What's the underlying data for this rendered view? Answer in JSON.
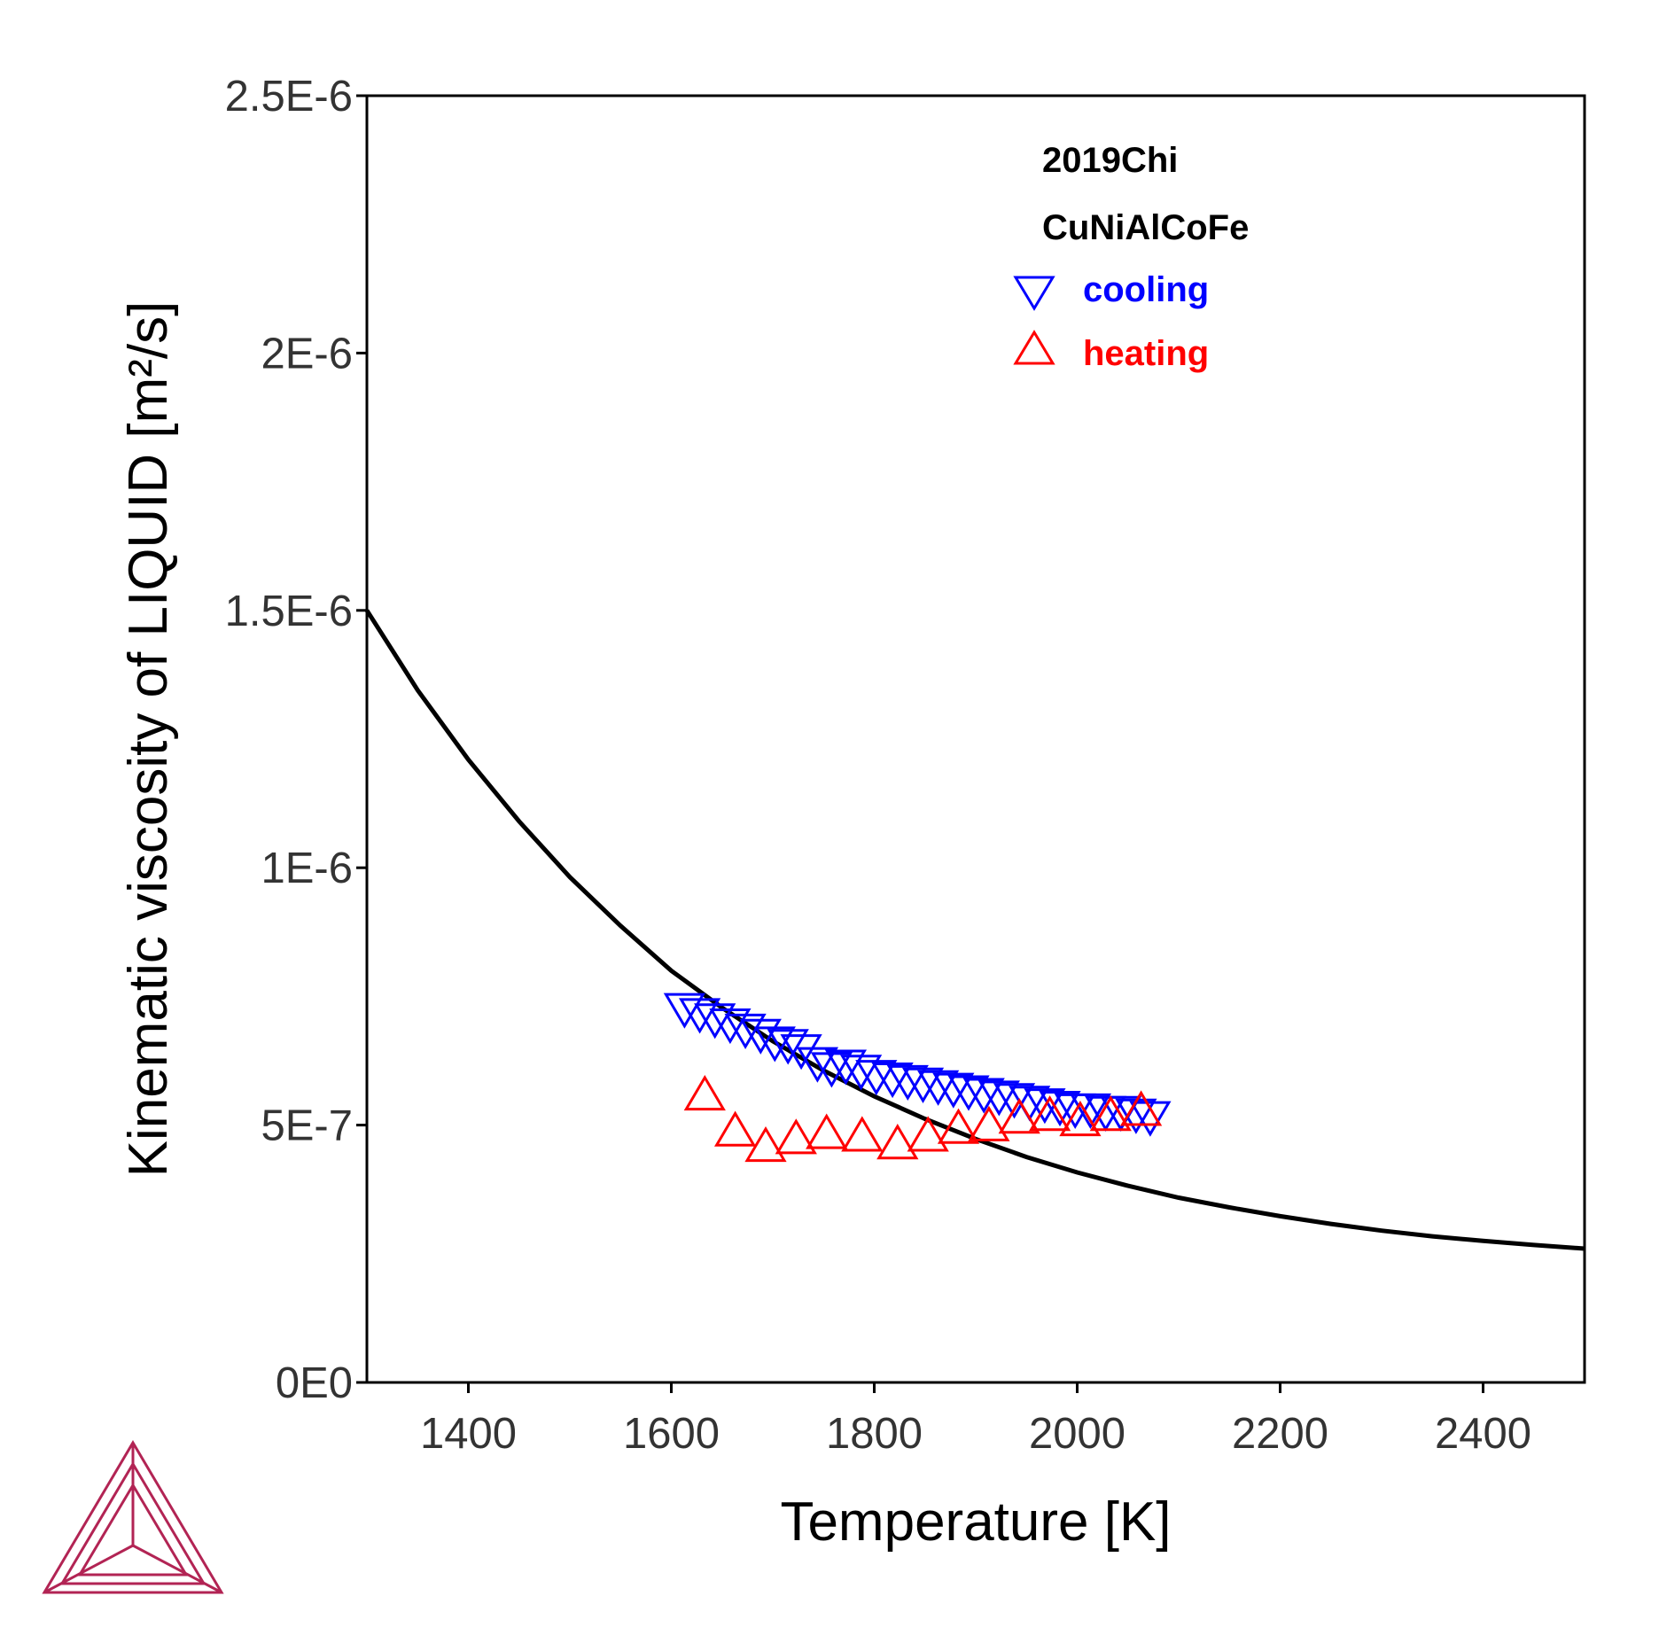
{
  "chart_data": {
    "type": "scatter",
    "title": "",
    "xlabel": "Temperature [K]",
    "ylabel": "Kinematic viscosity of LIQUID [m²/s]",
    "xlim": [
      1300,
      2500
    ],
    "ylim": [
      0,
      2.5e-06
    ],
    "x_ticks": [
      1400,
      1600,
      1800,
      2000,
      2200,
      2400
    ],
    "x_tick_labels": [
      "1400",
      "1600",
      "1800",
      "2000",
      "2200",
      "2400"
    ],
    "y_ticks": [
      0,
      5e-07,
      1e-06,
      1.5e-06,
      2e-06,
      2.5e-06
    ],
    "y_tick_labels": [
      "0E0",
      "5E-7",
      "1E-6",
      "1.5E-6",
      "2E-6",
      "2.5E-6"
    ],
    "grid": false,
    "legend_position": "top-right",
    "legend_headers": [
      "2019Chi",
      "CuNiAlCoFe"
    ],
    "series": [
      {
        "kind": "line",
        "color": "#000000",
        "x": [
          1300,
          1350,
          1400,
          1450,
          1500,
          1550,
          1600,
          1650,
          1700,
          1750,
          1800,
          1850,
          1900,
          1950,
          2000,
          2050,
          2100,
          2150,
          2200,
          2250,
          2300,
          2350,
          2400,
          2450,
          2500
        ],
        "values": [
          1.5e-06,
          1.345e-06,
          1.21e-06,
          1.09e-06,
          9.82e-07,
          8.87e-07,
          8e-07,
          7.28e-07,
          6.63e-07,
          6.06e-07,
          5.56e-07,
          5.12e-07,
          4.73e-07,
          4.38e-07,
          4.08e-07,
          3.82e-07,
          3.59e-07,
          3.4e-07,
          3.23e-07,
          3.08e-07,
          2.95e-07,
          2.84e-07,
          2.75e-07,
          2.67e-07,
          2.6e-07
        ]
      },
      {
        "name": "cooling",
        "kind": "scatter",
        "marker": "triangle-down",
        "color": "#0000ff",
        "x": [
          1613,
          1628,
          1643,
          1658,
          1673,
          1688,
          1702,
          1715,
          1728,
          1744,
          1758,
          1772,
          1787,
          1802,
          1818,
          1833,
          1848,
          1863,
          1878,
          1893,
          1908,
          1923,
          1938,
          1953,
          1968,
          1983,
          1998,
          2013,
          2028,
          2043,
          2058,
          2072
        ],
        "values": [
          7.25e-07,
          7.15e-07,
          7.05e-07,
          6.95e-07,
          6.85e-07,
          6.75e-07,
          6.6e-07,
          6.55e-07,
          6.45e-07,
          6.2e-07,
          6.1e-07,
          6.15e-07,
          6.05e-07,
          5.95e-07,
          5.9e-07,
          5.85e-07,
          5.8e-07,
          5.75e-07,
          5.7e-07,
          5.65e-07,
          5.6e-07,
          5.55e-07,
          5.5e-07,
          5.45e-07,
          5.4e-07,
          5.35e-07,
          5.3e-07,
          5.3e-07,
          5.25e-07,
          5.25e-07,
          5.2e-07,
          5.15e-07
        ]
      },
      {
        "name": "heating",
        "kind": "scatter",
        "marker": "triangle-up",
        "color": "#ff0000",
        "x": [
          1633,
          1663,
          1693,
          1723,
          1753,
          1788,
          1823,
          1853,
          1883,
          1913,
          1943,
          1973,
          2003,
          2033,
          2063
        ],
        "values": [
          5.6e-07,
          4.9e-07,
          4.6e-07,
          4.75e-07,
          4.85e-07,
          4.8e-07,
          4.65e-07,
          4.8e-07,
          4.95e-07,
          5e-07,
          5.15e-07,
          5.2e-07,
          5.1e-07,
          5.2e-07,
          5.3e-07
        ]
      }
    ]
  }
}
